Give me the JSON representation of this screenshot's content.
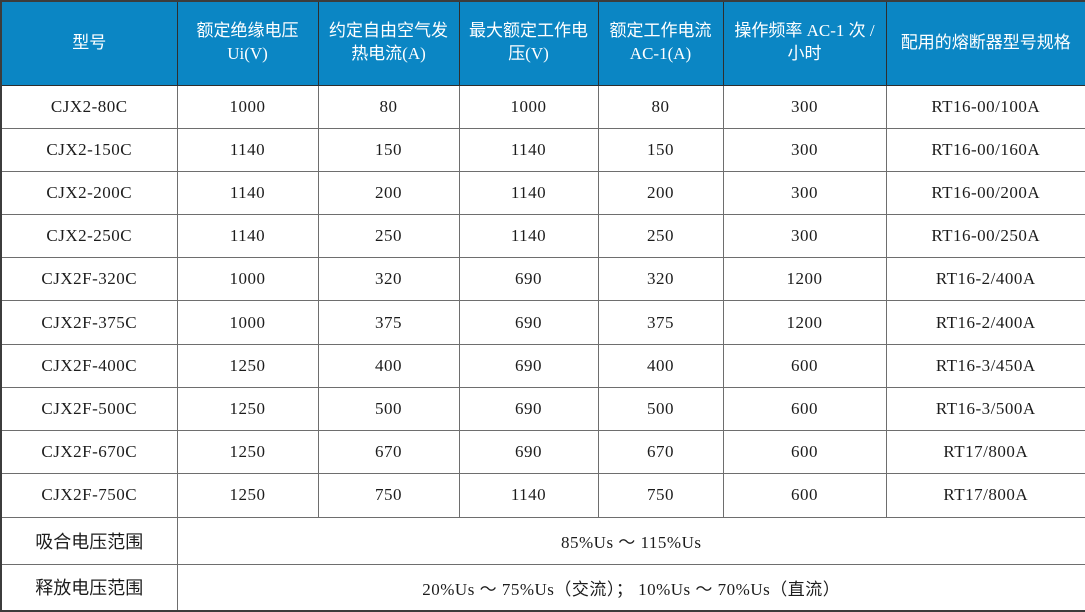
{
  "table": {
    "headers": [
      "型号",
      "额定绝缘电压 Ui(V)",
      "约定自由空气发热电流(A)",
      "最大额定工作电压(V)",
      "额定工作电流 AC-1(A)",
      "操作频率 AC-1 次 / 小时",
      "配用的熔断器型号规格"
    ],
    "rows": [
      [
        "CJX2-80C",
        "1000",
        "80",
        "1000",
        "80",
        "300",
        "RT16-00/100A"
      ],
      [
        "CJX2-150C",
        "1140",
        "150",
        "1140",
        "150",
        "300",
        "RT16-00/160A"
      ],
      [
        "CJX2-200C",
        "1140",
        "200",
        "1140",
        "200",
        "300",
        "RT16-00/200A"
      ],
      [
        "CJX2-250C",
        "1140",
        "250",
        "1140",
        "250",
        "300",
        "RT16-00/250A"
      ],
      [
        "CJX2F-320C",
        "1000",
        "320",
        "690",
        "320",
        "1200",
        "RT16-2/400A"
      ],
      [
        "CJX2F-375C",
        "1000",
        "375",
        "690",
        "375",
        "1200",
        "RT16-2/400A"
      ],
      [
        "CJX2F-400C",
        "1250",
        "400",
        "690",
        "400",
        "600",
        "RT16-3/450A"
      ],
      [
        "CJX2F-500C",
        "1250",
        "500",
        "690",
        "500",
        "600",
        "RT16-3/500A"
      ],
      [
        "CJX2F-670C",
        "1250",
        "670",
        "690",
        "670",
        "600",
        "RT17/800A"
      ],
      [
        "CJX2F-750C",
        "1250",
        "750",
        "1140",
        "750",
        "600",
        "RT17/800A"
      ]
    ],
    "footer_rows": [
      {
        "label": "吸合电压范围",
        "value": "85%Us ～ 115%Us"
      },
      {
        "label": "释放电压范围",
        "value": "20%Us ～ 75%Us（交流）； 10%Us ～ 70%Us（直流）"
      }
    ]
  },
  "colors": {
    "header_bg": "#0b86c4",
    "header_text": "#ffffff",
    "body_text": "#1c1c1c",
    "border": "#6e6e6e",
    "outer_border": "#3c3c3c"
  }
}
